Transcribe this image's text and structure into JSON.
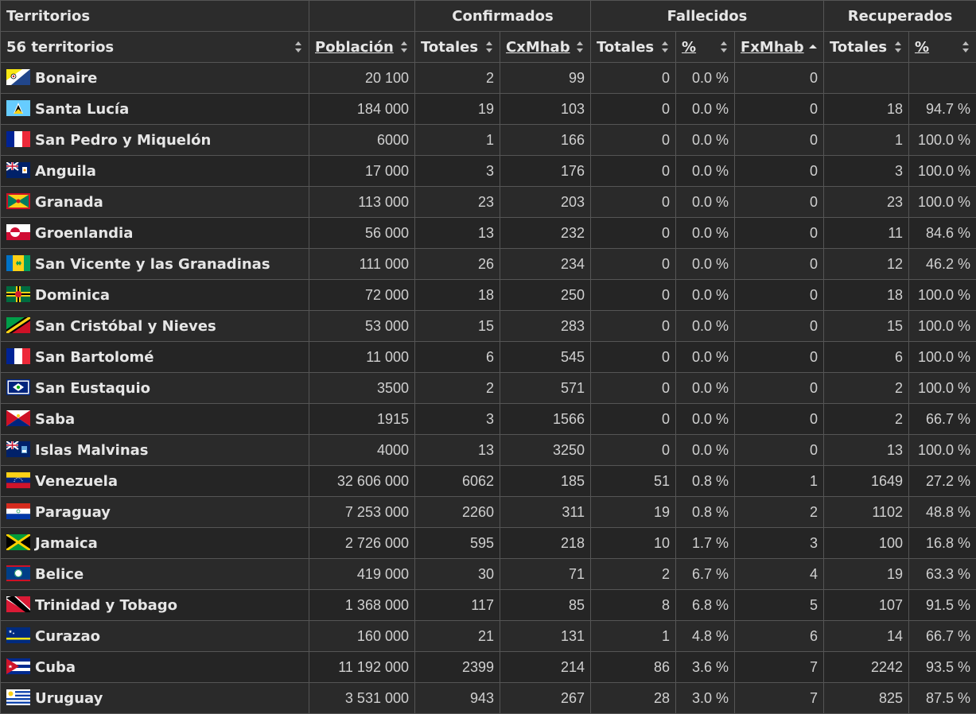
{
  "header": {
    "groups": [
      "Territorios",
      "Confirmados",
      "Fallecidos",
      "Recuperados"
    ],
    "columns": [
      "56 territorios",
      "Población",
      "Totales",
      "CxMhab",
      "Totales",
      "%",
      "FxMhab",
      "Totales",
      "%"
    ]
  },
  "rows": [
    {
      "name": "Bonaire",
      "flag": "bonaire",
      "pop": "20 100",
      "conf": "2",
      "cx": "99",
      "dead": "0",
      "dpct": "0.0 %",
      "fx": "0",
      "rec": "",
      "rpct": ""
    },
    {
      "name": "Santa Lucía",
      "flag": "saintlucia",
      "pop": "184 000",
      "conf": "19",
      "cx": "103",
      "dead": "0",
      "dpct": "0.0 %",
      "fx": "0",
      "rec": "18",
      "rpct": "94.7 %"
    },
    {
      "name": "San Pedro y Miquelón",
      "flag": "france",
      "pop": "6000",
      "conf": "1",
      "cx": "166",
      "dead": "0",
      "dpct": "0.0 %",
      "fx": "0",
      "rec": "1",
      "rpct": "100.0 %"
    },
    {
      "name": "Anguila",
      "flag": "anguilla",
      "pop": "17 000",
      "conf": "3",
      "cx": "176",
      "dead": "0",
      "dpct": "0.0 %",
      "fx": "0",
      "rec": "3",
      "rpct": "100.0 %"
    },
    {
      "name": "Granada",
      "flag": "grenada",
      "pop": "113 000",
      "conf": "23",
      "cx": "203",
      "dead": "0",
      "dpct": "0.0 %",
      "fx": "0",
      "rec": "23",
      "rpct": "100.0 %"
    },
    {
      "name": "Groenlandia",
      "flag": "greenland",
      "pop": "56 000",
      "conf": "13",
      "cx": "232",
      "dead": "0",
      "dpct": "0.0 %",
      "fx": "0",
      "rec": "11",
      "rpct": "84.6 %"
    },
    {
      "name": "San Vicente y las Granadinas",
      "flag": "stvincent",
      "pop": "111 000",
      "conf": "26",
      "cx": "234",
      "dead": "0",
      "dpct": "0.0 %",
      "fx": "0",
      "rec": "12",
      "rpct": "46.2 %"
    },
    {
      "name": "Dominica",
      "flag": "dominica",
      "pop": "72 000",
      "conf": "18",
      "cx": "250",
      "dead": "0",
      "dpct": "0.0 %",
      "fx": "0",
      "rec": "18",
      "rpct": "100.0 %"
    },
    {
      "name": "San Cristóbal y Nieves",
      "flag": "stkitts",
      "pop": "53 000",
      "conf": "15",
      "cx": "283",
      "dead": "0",
      "dpct": "0.0 %",
      "fx": "0",
      "rec": "15",
      "rpct": "100.0 %"
    },
    {
      "name": "San Bartolomé",
      "flag": "france",
      "pop": "11 000",
      "conf": "6",
      "cx": "545",
      "dead": "0",
      "dpct": "0.0 %",
      "fx": "0",
      "rec": "6",
      "rpct": "100.0 %"
    },
    {
      "name": "San Eustaquio",
      "flag": "steustatius",
      "pop": "3500",
      "conf": "2",
      "cx": "571",
      "dead": "0",
      "dpct": "0.0 %",
      "fx": "0",
      "rec": "2",
      "rpct": "100.0 %"
    },
    {
      "name": "Saba",
      "flag": "saba",
      "pop": "1915",
      "conf": "3",
      "cx": "1566",
      "dead": "0",
      "dpct": "0.0 %",
      "fx": "0",
      "rec": "2",
      "rpct": "66.7 %"
    },
    {
      "name": "Islas Malvinas",
      "flag": "falklands",
      "pop": "4000",
      "conf": "13",
      "cx": "3250",
      "dead": "0",
      "dpct": "0.0 %",
      "fx": "0",
      "rec": "13",
      "rpct": "100.0 %"
    },
    {
      "name": "Venezuela",
      "flag": "venezuela",
      "pop": "32 606 000",
      "conf": "6062",
      "cx": "185",
      "dead": "51",
      "dpct": "0.8 %",
      "fx": "1",
      "rec": "1649",
      "rpct": "27.2 %"
    },
    {
      "name": "Paraguay",
      "flag": "paraguay",
      "pop": "7 253 000",
      "conf": "2260",
      "cx": "311",
      "dead": "19",
      "dpct": "0.8 %",
      "fx": "2",
      "rec": "1102",
      "rpct": "48.8 %"
    },
    {
      "name": "Jamaica",
      "flag": "jamaica",
      "pop": "2 726 000",
      "conf": "595",
      "cx": "218",
      "dead": "10",
      "dpct": "1.7 %",
      "fx": "3",
      "rec": "100",
      "rpct": "16.8 %"
    },
    {
      "name": "Belice",
      "flag": "belize",
      "pop": "419 000",
      "conf": "30",
      "cx": "71",
      "dead": "2",
      "dpct": "6.7 %",
      "fx": "4",
      "rec": "19",
      "rpct": "63.3 %"
    },
    {
      "name": "Trinidad y Tobago",
      "flag": "trinidad",
      "pop": "1 368 000",
      "conf": "117",
      "cx": "85",
      "dead": "8",
      "dpct": "6.8 %",
      "fx": "5",
      "rec": "107",
      "rpct": "91.5 %"
    },
    {
      "name": "Curazao",
      "flag": "curacao",
      "pop": "160 000",
      "conf": "21",
      "cx": "131",
      "dead": "1",
      "dpct": "4.8 %",
      "fx": "6",
      "rec": "14",
      "rpct": "66.7 %"
    },
    {
      "name": "Cuba",
      "flag": "cuba",
      "pop": "11 192 000",
      "conf": "2399",
      "cx": "214",
      "dead": "86",
      "dpct": "3.6 %",
      "fx": "7",
      "rec": "2242",
      "rpct": "93.5 %"
    },
    {
      "name": "Uruguay",
      "flag": "uruguay",
      "pop": "3 531 000",
      "conf": "943",
      "cx": "267",
      "dead": "28",
      "dpct": "3.0 %",
      "fx": "7",
      "rec": "825",
      "rpct": "87.5 %"
    }
  ]
}
